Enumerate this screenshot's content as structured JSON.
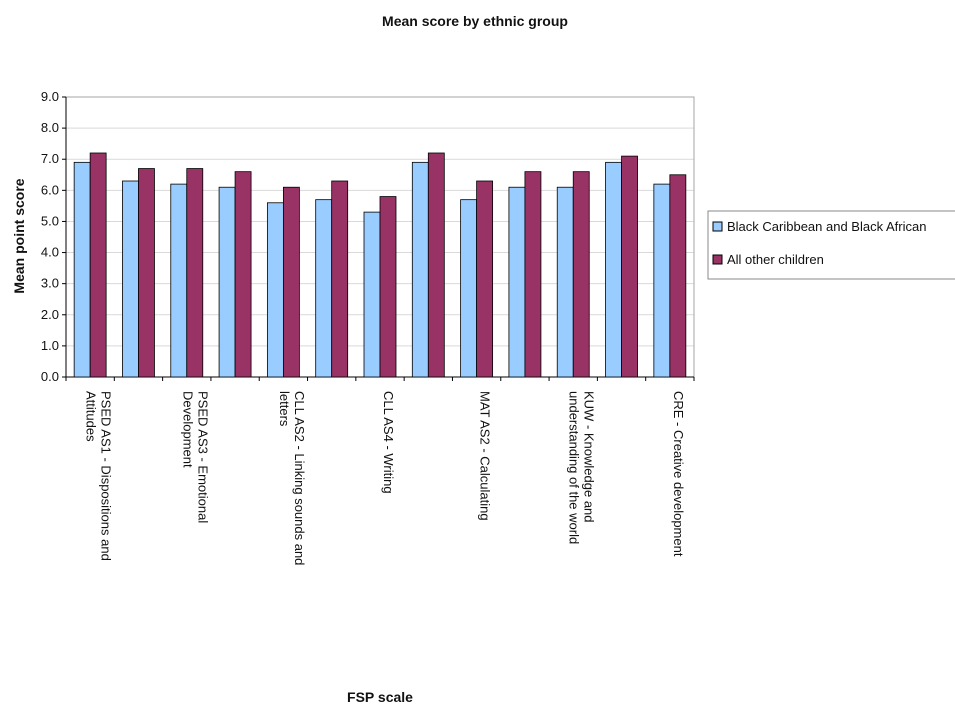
{
  "chart_data": {
    "type": "bar",
    "title": "Mean score by ethnic group",
    "xlabel": "FSP scale",
    "ylabel": "Mean point score",
    "ylim": [
      0,
      9
    ],
    "yticks": [
      "0.0",
      "1.0",
      "2.0",
      "3.0",
      "4.0",
      "5.0",
      "6.0",
      "7.0",
      "8.0",
      "9.0"
    ],
    "grid": true,
    "legend_position": "right",
    "categories": [
      "PSED AS1 - Dispositions and Attitudes",
      "",
      "PSED AS3 - Emotional Development",
      "",
      "CLL AS2 - Linking sounds and letters",
      "",
      "CLL AS4 - Writing",
      "",
      "MAT AS2 - Calculating",
      "",
      "KUW - Knowledge and understanding of the world",
      "",
      "CRE - Creative development"
    ],
    "category_label_lines": [
      [
        "PSED AS1 - Dispositions and",
        "Attitudes"
      ],
      [],
      [
        "PSED AS3 - Emotional",
        "Development"
      ],
      [],
      [
        "CLL AS2 - Linking sounds and",
        "letters"
      ],
      [],
      [
        "CLL AS4 - Writing"
      ],
      [],
      [
        "MAT AS2 - Calculating"
      ],
      [],
      [
        "KUW - Knowledge and",
        "understanding of the world"
      ],
      [],
      [
        "CRE - Creative development"
      ]
    ],
    "series": [
      {
        "name": "Black Caribbean and Black African",
        "color": "#99ccff",
        "values": [
          6.9,
          6.3,
          6.2,
          6.1,
          5.6,
          5.7,
          5.3,
          6.9,
          5.7,
          6.1,
          6.1,
          6.9,
          6.2
        ]
      },
      {
        "name": "All other children",
        "color": "#993366",
        "values": [
          7.2,
          6.7,
          6.7,
          6.6,
          6.1,
          6.3,
          5.8,
          7.2,
          6.3,
          6.6,
          6.6,
          7.1,
          6.5
        ]
      }
    ]
  }
}
